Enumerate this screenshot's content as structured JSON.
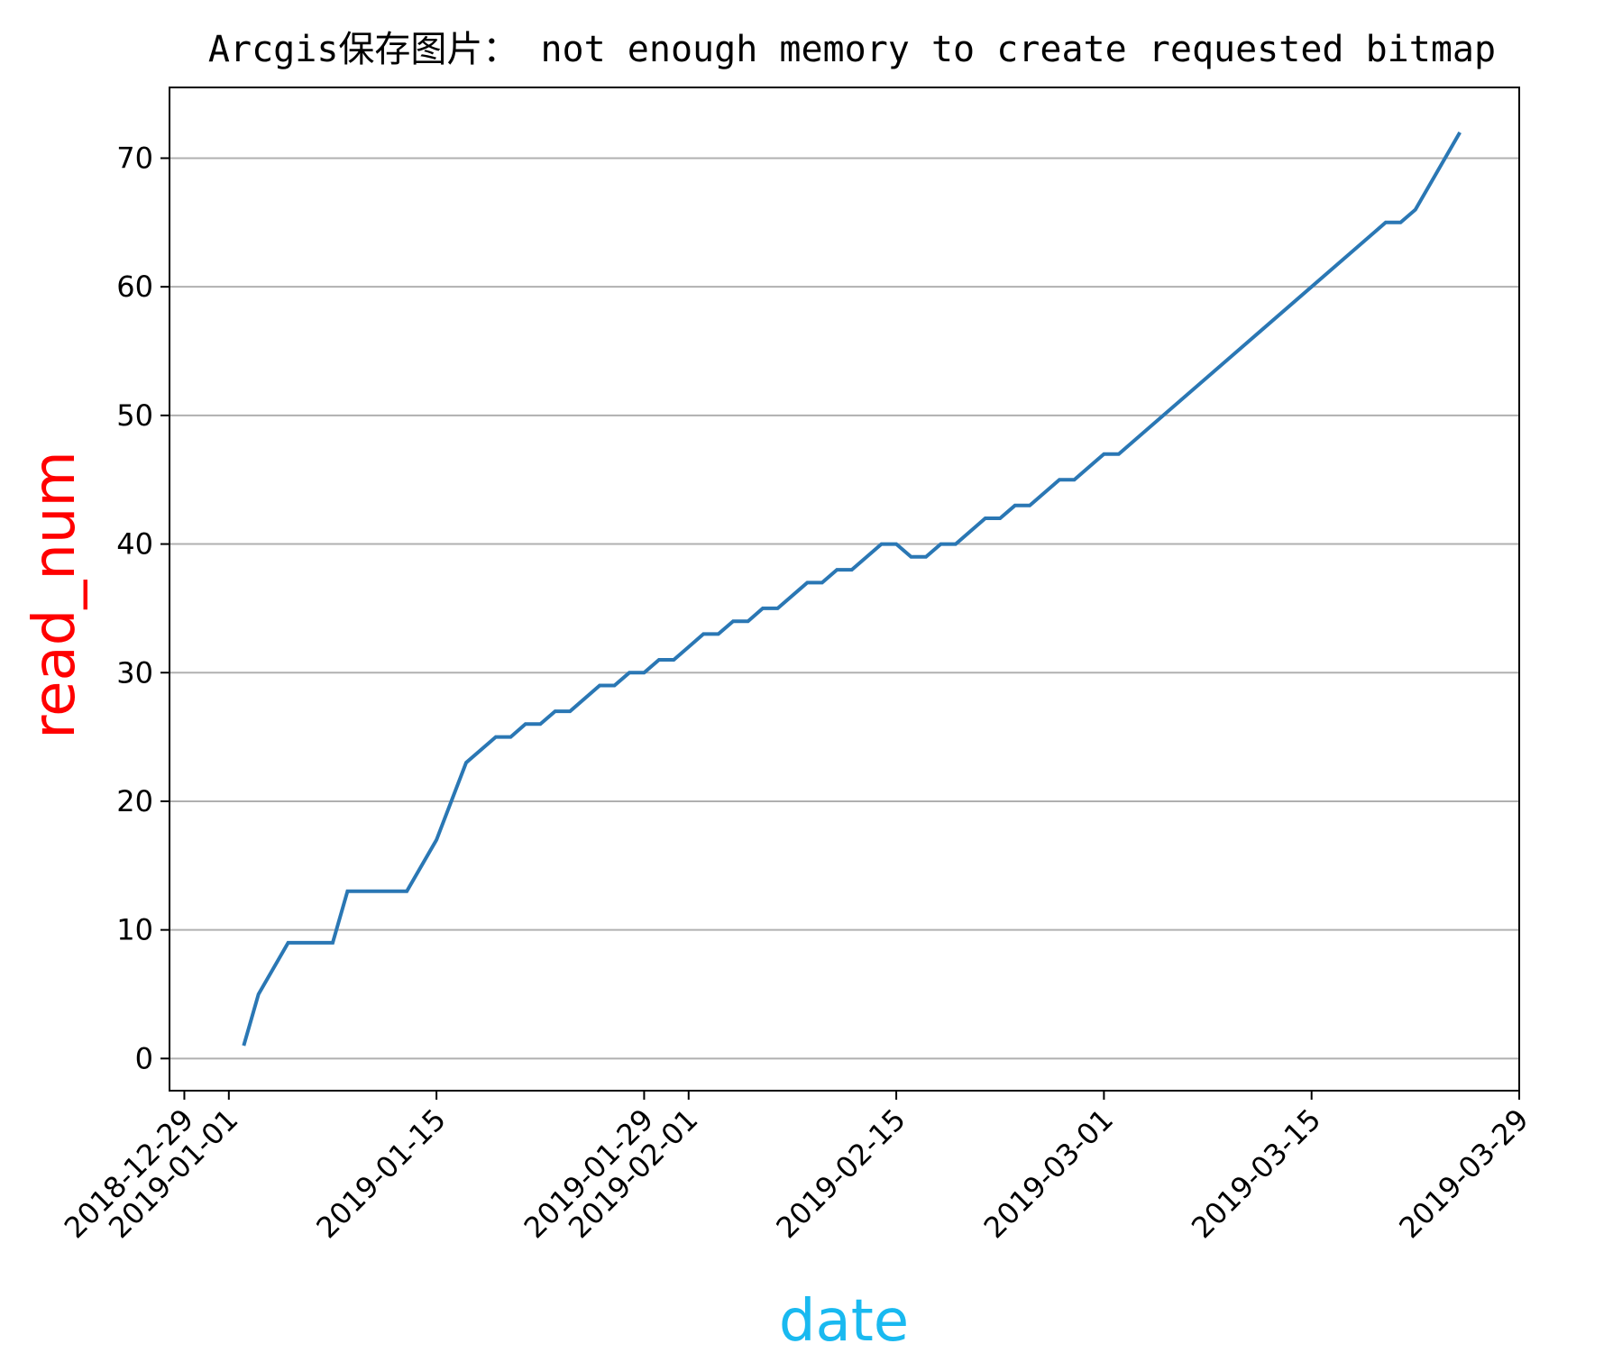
{
  "chart_data": {
    "type": "line",
    "title": "Arcgis保存图片： not enough memory to create requested bitmap",
    "xlabel": "date",
    "ylabel": "read_num",
    "xlabel_color": "#19b9f0",
    "ylabel_color": "#ff0000",
    "line_color": "#2a77b4",
    "grid": "y-only",
    "xlim": [
      "2018-12-28",
      "2019-03-29"
    ],
    "ylim": [
      -2.5,
      75.5
    ],
    "x_ticks": [
      "2018-12-29",
      "2019-01-01",
      "2019-01-15",
      "2019-01-29",
      "2019-02-01",
      "2019-02-15",
      "2019-03-01",
      "2019-03-15",
      "2019-03-29"
    ],
    "y_ticks": [
      0,
      10,
      20,
      30,
      40,
      50,
      60,
      70
    ],
    "series": [
      {
        "x": [
          "2019-01-02",
          "2019-01-03",
          "2019-01-05",
          "2019-01-06",
          "2019-01-07",
          "2019-01-08",
          "2019-01-09",
          "2019-01-10",
          "2019-01-11",
          "2019-01-12",
          "2019-01-13",
          "2019-01-15",
          "2019-01-17",
          "2019-01-19",
          "2019-01-20",
          "2019-01-21",
          "2019-01-22",
          "2019-01-23",
          "2019-01-24",
          "2019-01-26",
          "2019-01-27",
          "2019-01-28",
          "2019-01-29",
          "2019-01-30",
          "2019-01-31",
          "2019-02-02",
          "2019-02-03",
          "2019-02-04",
          "2019-02-05",
          "2019-02-06",
          "2019-02-07",
          "2019-02-09",
          "2019-02-10",
          "2019-02-11",
          "2019-02-12",
          "2019-02-14",
          "2019-02-15",
          "2019-02-16",
          "2019-02-17",
          "2019-02-18",
          "2019-02-19",
          "2019-02-21",
          "2019-02-22",
          "2019-02-23",
          "2019-02-24",
          "2019-02-26",
          "2019-02-27",
          "2019-03-01",
          "2019-03-02",
          "2019-03-20",
          "2019-03-21",
          "2019-03-22",
          "2019-03-25"
        ],
        "y": [
          1,
          5,
          9,
          9,
          9,
          9,
          13,
          13,
          13,
          13,
          13,
          17,
          23,
          25,
          25,
          26,
          26,
          27,
          27,
          29,
          29,
          30,
          30,
          31,
          31,
          33,
          33,
          34,
          34,
          35,
          35,
          37,
          37,
          38,
          38,
          40,
          40,
          39,
          39,
          40,
          40,
          42,
          42,
          43,
          43,
          45,
          45,
          47,
          47,
          65,
          65,
          66,
          72
        ]
      }
    ]
  }
}
